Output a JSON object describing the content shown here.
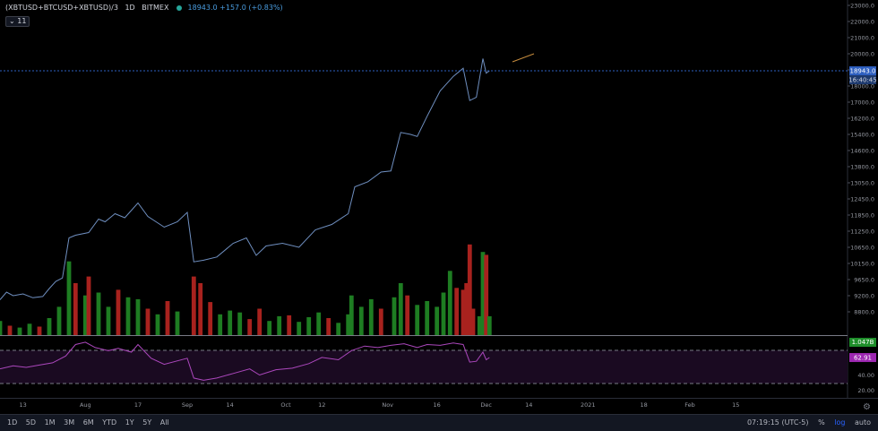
{
  "header": {
    "symbol": "(XBTUSD+BTCUSD+XBTUSD)/3",
    "interval": "1D",
    "exchange": "BITMEX",
    "price": "18943.0",
    "change": "+157.0 (+0.83%)",
    "indicator_count": "11"
  },
  "price_scale": {
    "tick_labels": [
      "23000.0",
      "22000.0",
      "21000.0",
      "20000.0",
      "19000.0",
      "18000.0",
      "17000.0",
      "16200.0",
      "15400.0",
      "14600.0",
      "13800.0",
      "13050.0",
      "12450.0",
      "11850.0",
      "11250.0",
      "10650.0",
      "10150.0",
      "9650.0",
      "9200.0",
      "8800.0"
    ],
    "last_price_label": "18943.0",
    "countdown_label": "16:40:45",
    "volume_label": "1.047B"
  },
  "rsi_scale": {
    "tick_labels": [
      "80.00",
      "60.00",
      "40.00",
      "20.00"
    ],
    "value_label": "62.91"
  },
  "time_axis": {
    "labels": [
      "13",
      "Aug",
      "17",
      "Sep",
      "14",
      "Oct",
      "12",
      "Nov",
      "16",
      "Dec",
      "14",
      "2021",
      "18",
      "Feb",
      "15"
    ]
  },
  "bottom_bar": {
    "ranges": [
      "1D",
      "5D",
      "1M",
      "3M",
      "6M",
      "YTD",
      "1Y",
      "5Y",
      "All"
    ],
    "time": "07:19:15 (UTC-5)",
    "percent_label": "%",
    "log_label": "log",
    "auto_label": "auto"
  },
  "colors": {
    "background": "#000000",
    "price_line": "#6f8fc0",
    "volume_up": "#1e7d22",
    "volume_down": "#a8221e",
    "rsi_line": "#ab47bc",
    "rsi_band": "#1a0a21",
    "last_price_badge": "#2e5fbf",
    "volume_badge": "#1e8e2a",
    "rsi_badge": "#9c27b0"
  },
  "chart_data": {
    "type": "line",
    "scale": "log",
    "ylim": [
      8600,
      23500
    ],
    "last_price": 18943,
    "x_range": [
      "2020-07-06",
      "2021-03-21"
    ],
    "price_series": [
      {
        "date": "2020-07-06",
        "value": 9100
      },
      {
        "date": "2020-07-08",
        "value": 9300
      },
      {
        "date": "2020-07-10",
        "value": 9200
      },
      {
        "date": "2020-07-13",
        "value": 9250
      },
      {
        "date": "2020-07-16",
        "value": 9150
      },
      {
        "date": "2020-07-19",
        "value": 9180
      },
      {
        "date": "2020-07-21",
        "value": 9400
      },
      {
        "date": "2020-07-23",
        "value": 9600
      },
      {
        "date": "2020-07-25",
        "value": 9700
      },
      {
        "date": "2020-07-27",
        "value": 11000
      },
      {
        "date": "2020-07-29",
        "value": 11100
      },
      {
        "date": "2020-08-02",
        "value": 11200
      },
      {
        "date": "2020-08-05",
        "value": 11700
      },
      {
        "date": "2020-08-07",
        "value": 11600
      },
      {
        "date": "2020-08-10",
        "value": 11900
      },
      {
        "date": "2020-08-13",
        "value": 11750
      },
      {
        "date": "2020-08-17",
        "value": 12300
      },
      {
        "date": "2020-08-20",
        "value": 11800
      },
      {
        "date": "2020-08-25",
        "value": 11400
      },
      {
        "date": "2020-08-29",
        "value": 11600
      },
      {
        "date": "2020-09-01",
        "value": 11950
      },
      {
        "date": "2020-09-03",
        "value": 10200
      },
      {
        "date": "2020-09-06",
        "value": 10250
      },
      {
        "date": "2020-09-10",
        "value": 10350
      },
      {
        "date": "2020-09-15",
        "value": 10800
      },
      {
        "date": "2020-09-19",
        "value": 11000
      },
      {
        "date": "2020-09-22",
        "value": 10400
      },
      {
        "date": "2020-09-25",
        "value": 10700
      },
      {
        "date": "2020-09-30",
        "value": 10800
      },
      {
        "date": "2020-10-05",
        "value": 10650
      },
      {
        "date": "2020-10-10",
        "value": 11300
      },
      {
        "date": "2020-10-15",
        "value": 11500
      },
      {
        "date": "2020-10-20",
        "value": 11900
      },
      {
        "date": "2020-10-22",
        "value": 12900
      },
      {
        "date": "2020-10-26",
        "value": 13100
      },
      {
        "date": "2020-10-30",
        "value": 13550
      },
      {
        "date": "2020-11-02",
        "value": 13600
      },
      {
        "date": "2020-11-05",
        "value": 15500
      },
      {
        "date": "2020-11-08",
        "value": 15400
      },
      {
        "date": "2020-11-10",
        "value": 15300
      },
      {
        "date": "2020-11-13",
        "value": 16300
      },
      {
        "date": "2020-11-17",
        "value": 17700
      },
      {
        "date": "2020-11-21",
        "value": 18600
      },
      {
        "date": "2020-11-24",
        "value": 19100
      },
      {
        "date": "2020-11-26",
        "value": 17100
      },
      {
        "date": "2020-11-28",
        "value": 17300
      },
      {
        "date": "2020-11-30",
        "value": 19700
      },
      {
        "date": "2020-12-01",
        "value": 18800
      },
      {
        "date": "2020-12-02",
        "value": 18943
      }
    ],
    "volume_series": [
      {
        "date": "2020-07-06",
        "value": 0.15,
        "dir": "up"
      },
      {
        "date": "2020-07-09",
        "value": 0.1,
        "dir": "down"
      },
      {
        "date": "2020-07-12",
        "value": 0.08,
        "dir": "up"
      },
      {
        "date": "2020-07-15",
        "value": 0.12,
        "dir": "up"
      },
      {
        "date": "2020-07-18",
        "value": 0.09,
        "dir": "down"
      },
      {
        "date": "2020-07-21",
        "value": 0.18,
        "dir": "up"
      },
      {
        "date": "2020-07-24",
        "value": 0.3,
        "dir": "up"
      },
      {
        "date": "2020-07-27",
        "value": 0.78,
        "dir": "up"
      },
      {
        "date": "2020-07-29",
        "value": 0.55,
        "dir": "down"
      },
      {
        "date": "2020-08-01",
        "value": 0.42,
        "dir": "up"
      },
      {
        "date": "2020-08-02",
        "value": 0.62,
        "dir": "down"
      },
      {
        "date": "2020-08-05",
        "value": 0.45,
        "dir": "up"
      },
      {
        "date": "2020-08-08",
        "value": 0.3,
        "dir": "up"
      },
      {
        "date": "2020-08-11",
        "value": 0.48,
        "dir": "down"
      },
      {
        "date": "2020-08-14",
        "value": 0.4,
        "dir": "up"
      },
      {
        "date": "2020-08-17",
        "value": 0.38,
        "dir": "up"
      },
      {
        "date": "2020-08-20",
        "value": 0.28,
        "dir": "down"
      },
      {
        "date": "2020-08-23",
        "value": 0.22,
        "dir": "up"
      },
      {
        "date": "2020-08-26",
        "value": 0.36,
        "dir": "down"
      },
      {
        "date": "2020-08-29",
        "value": 0.25,
        "dir": "up"
      },
      {
        "date": "2020-09-03",
        "value": 0.62,
        "dir": "down"
      },
      {
        "date": "2020-09-05",
        "value": 0.55,
        "dir": "down"
      },
      {
        "date": "2020-09-08",
        "value": 0.35,
        "dir": "down"
      },
      {
        "date": "2020-09-11",
        "value": 0.22,
        "dir": "up"
      },
      {
        "date": "2020-09-14",
        "value": 0.26,
        "dir": "up"
      },
      {
        "date": "2020-09-17",
        "value": 0.24,
        "dir": "up"
      },
      {
        "date": "2020-09-20",
        "value": 0.17,
        "dir": "down"
      },
      {
        "date": "2020-09-23",
        "value": 0.28,
        "dir": "down"
      },
      {
        "date": "2020-09-26",
        "value": 0.15,
        "dir": "up"
      },
      {
        "date": "2020-09-29",
        "value": 0.2,
        "dir": "up"
      },
      {
        "date": "2020-10-02",
        "value": 0.21,
        "dir": "down"
      },
      {
        "date": "2020-10-05",
        "value": 0.14,
        "dir": "up"
      },
      {
        "date": "2020-10-08",
        "value": 0.19,
        "dir": "up"
      },
      {
        "date": "2020-10-11",
        "value": 0.24,
        "dir": "up"
      },
      {
        "date": "2020-10-14",
        "value": 0.18,
        "dir": "down"
      },
      {
        "date": "2020-10-17",
        "value": 0.13,
        "dir": "up"
      },
      {
        "date": "2020-10-20",
        "value": 0.22,
        "dir": "up"
      },
      {
        "date": "2020-10-21",
        "value": 0.42,
        "dir": "up"
      },
      {
        "date": "2020-10-24",
        "value": 0.3,
        "dir": "up"
      },
      {
        "date": "2020-10-27",
        "value": 0.38,
        "dir": "up"
      },
      {
        "date": "2020-10-30",
        "value": 0.28,
        "dir": "down"
      },
      {
        "date": "2020-11-03",
        "value": 0.4,
        "dir": "up"
      },
      {
        "date": "2020-11-05",
        "value": 0.55,
        "dir": "up"
      },
      {
        "date": "2020-11-07",
        "value": 0.42,
        "dir": "down"
      },
      {
        "date": "2020-11-10",
        "value": 0.32,
        "dir": "up"
      },
      {
        "date": "2020-11-13",
        "value": 0.36,
        "dir": "up"
      },
      {
        "date": "2020-11-16",
        "value": 0.3,
        "dir": "up"
      },
      {
        "date": "2020-11-18",
        "value": 0.45,
        "dir": "up"
      },
      {
        "date": "2020-11-20",
        "value": 0.68,
        "dir": "up"
      },
      {
        "date": "2020-11-22",
        "value": 0.5,
        "dir": "down"
      },
      {
        "date": "2020-11-24",
        "value": 0.48,
        "dir": "down"
      },
      {
        "date": "2020-11-25",
        "value": 0.55,
        "dir": "down"
      },
      {
        "date": "2020-11-26",
        "value": 0.96,
        "dir": "down"
      },
      {
        "date": "2020-11-27",
        "value": 0.28,
        "dir": "down"
      },
      {
        "date": "2020-11-29",
        "value": 0.2,
        "dir": "up"
      },
      {
        "date": "2020-11-30",
        "value": 0.88,
        "dir": "up"
      },
      {
        "date": "2020-12-01",
        "value": 0.85,
        "dir": "down"
      },
      {
        "date": "2020-12-02",
        "value": 0.2,
        "dir": "up"
      }
    ],
    "volume_max": 1.1,
    "rsi_series": [
      {
        "date": "2020-07-06",
        "value": 48
      },
      {
        "date": "2020-07-10",
        "value": 52
      },
      {
        "date": "2020-07-14",
        "value": 50
      },
      {
        "date": "2020-07-18",
        "value": 53
      },
      {
        "date": "2020-07-22",
        "value": 56
      },
      {
        "date": "2020-07-26",
        "value": 65
      },
      {
        "date": "2020-07-29",
        "value": 80
      },
      {
        "date": "2020-08-01",
        "value": 83
      },
      {
        "date": "2020-08-04",
        "value": 76
      },
      {
        "date": "2020-08-08",
        "value": 72
      },
      {
        "date": "2020-08-11",
        "value": 75
      },
      {
        "date": "2020-08-15",
        "value": 70
      },
      {
        "date": "2020-08-17",
        "value": 80
      },
      {
        "date": "2020-08-21",
        "value": 62
      },
      {
        "date": "2020-08-25",
        "value": 54
      },
      {
        "date": "2020-09-01",
        "value": 62
      },
      {
        "date": "2020-09-03",
        "value": 36
      },
      {
        "date": "2020-09-06",
        "value": 33
      },
      {
        "date": "2020-09-10",
        "value": 36
      },
      {
        "date": "2020-09-15",
        "value": 42
      },
      {
        "date": "2020-09-20",
        "value": 48
      },
      {
        "date": "2020-09-23",
        "value": 40
      },
      {
        "date": "2020-09-28",
        "value": 47
      },
      {
        "date": "2020-10-03",
        "value": 49
      },
      {
        "date": "2020-10-08",
        "value": 55
      },
      {
        "date": "2020-10-12",
        "value": 63
      },
      {
        "date": "2020-10-17",
        "value": 60
      },
      {
        "date": "2020-10-21",
        "value": 72
      },
      {
        "date": "2020-10-25",
        "value": 78
      },
      {
        "date": "2020-10-29",
        "value": 76
      },
      {
        "date": "2020-11-02",
        "value": 79
      },
      {
        "date": "2020-11-06",
        "value": 81
      },
      {
        "date": "2020-11-10",
        "value": 76
      },
      {
        "date": "2020-11-13",
        "value": 80
      },
      {
        "date": "2020-11-17",
        "value": 79
      },
      {
        "date": "2020-11-21",
        "value": 82
      },
      {
        "date": "2020-11-24",
        "value": 80
      },
      {
        "date": "2020-11-26",
        "value": 57
      },
      {
        "date": "2020-11-28",
        "value": 58
      },
      {
        "date": "2020-11-30",
        "value": 70
      },
      {
        "date": "2020-12-01",
        "value": 60
      },
      {
        "date": "2020-12-02",
        "value": 62.91
      }
    ],
    "rsi_ylim": [
      10,
      90
    ],
    "rsi_bands": [
      20,
      80
    ]
  }
}
